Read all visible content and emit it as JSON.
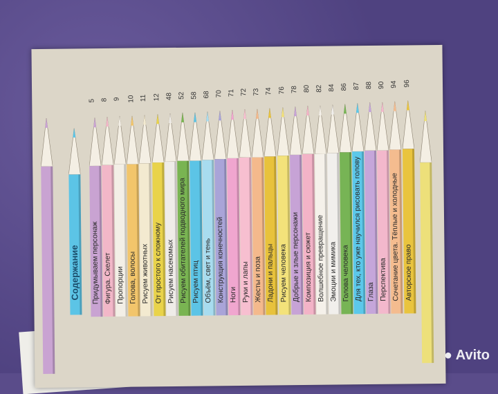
{
  "toc": {
    "title": "Содержание",
    "title_color": "#5cc4e6",
    "entries": [
      {
        "label": "Придумываем персонаж",
        "page": "5",
        "color": "#c9a3d2"
      },
      {
        "label": "Фигура. Скелет",
        "page": "8",
        "color": "#f2b7c8"
      },
      {
        "label": "Пропорции",
        "page": "9",
        "color": "#f3efe6"
      },
      {
        "label": "Голова, волосы",
        "page": "10",
        "color": "#f2c56b"
      },
      {
        "label": "Рисуем животных",
        "page": "11",
        "color": "#f3ead0"
      },
      {
        "label": "От простого к сложному",
        "page": "12",
        "color": "#e9d34a"
      },
      {
        "label": "Рисуем насекомых",
        "page": "48",
        "color": "#efece8"
      },
      {
        "label": "Рисуем обитателей подводного мира",
        "page": "52",
        "color": "#79b452"
      },
      {
        "label": "Рисуем птиц",
        "page": "58",
        "color": "#5cc4e6"
      },
      {
        "label": "Объём, свет и тень",
        "page": "68",
        "color": "#a8dcef"
      },
      {
        "label": "Конструкция конечностей",
        "page": "70",
        "color": "#a9a4d8"
      },
      {
        "label": "Ноги",
        "page": "71",
        "color": "#f0a6cf"
      },
      {
        "label": "Руки и лапы",
        "page": "72",
        "color": "#f7bfd0"
      },
      {
        "label": "Жесты и поза",
        "page": "73",
        "color": "#f4b98c"
      },
      {
        "label": "Ладони и пальцы",
        "page": "74",
        "color": "#e8c23c"
      },
      {
        "label": "Рисуем человека",
        "page": "76",
        "color": "#f3e27a"
      },
      {
        "label": "Добрые и злые персонажи",
        "page": "78",
        "color": "#c7a3d6"
      },
      {
        "label": "Композиция и сюжет",
        "page": "80",
        "color": "#f3b3c7"
      },
      {
        "label": "Волшебное превращение",
        "page": "82",
        "color": "#f5f1ea"
      },
      {
        "label": "Эмоции и мимика",
        "page": "84",
        "color": "#f1efec"
      },
      {
        "label": "Голова человека",
        "page": "86",
        "color": "#77b455"
      },
      {
        "label": "Для тех, кто уже научился рисовать голову",
        "page": "87",
        "color": "#5cc8ea"
      },
      {
        "label": "Глаза",
        "page": "88",
        "color": "#c5a6da"
      },
      {
        "label": "Перспектива",
        "page": "90",
        "color": "#f3b8cc"
      },
      {
        "label": "Сочетание цвета. Тёплые и холодные",
        "page": "94",
        "color": "#f4bc8f"
      },
      {
        "label": "Авторское право",
        "page": "96",
        "color": "#e9c43e"
      }
    ]
  },
  "watermark": "Avito"
}
